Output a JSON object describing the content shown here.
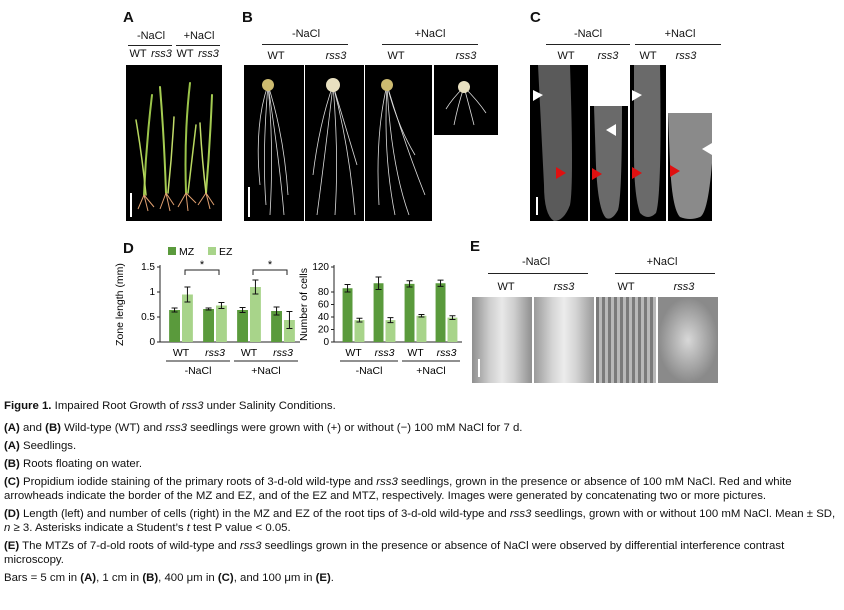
{
  "panels": {
    "A": {
      "label": "A",
      "cond": [
        "-NaCl",
        "+NaCl"
      ],
      "geno": [
        "WT",
        "rss3",
        "WT",
        "rss3"
      ]
    },
    "B": {
      "label": "B",
      "cond": [
        "-NaCl",
        "+NaCl"
      ],
      "geno": [
        "WT",
        "rss3",
        "WT",
        "rss3"
      ]
    },
    "C": {
      "label": "C",
      "cond": [
        "-NaCl",
        "+NaCl"
      ],
      "geno": [
        "WT",
        "rss3",
        "WT",
        "rss3"
      ]
    },
    "D": {
      "label": "D"
    },
    "E": {
      "label": "E",
      "cond": [
        "-NaCl",
        "+NaCl"
      ],
      "geno": [
        "WT",
        "rss3",
        "WT",
        "rss3"
      ]
    }
  },
  "chart_data": [
    {
      "type": "bar",
      "ylabel": "Zone length (mm)",
      "ylim": [
        0,
        1.5
      ],
      "yticks": [
        "1.5",
        "1",
        "0.5",
        "0"
      ],
      "legend": [
        "MZ",
        "EZ"
      ],
      "categories": [
        "WT",
        "rss3",
        "WT",
        "rss3"
      ],
      "groups": [
        "-NaCl",
        "+NaCl"
      ],
      "series": [
        {
          "name": "MZ",
          "values": [
            0.64,
            0.66,
            0.64,
            0.62
          ],
          "errors": [
            0.04,
            0.02,
            0.05,
            0.08
          ],
          "color": "#5a9a3c"
        },
        {
          "name": "EZ",
          "values": [
            0.95,
            0.73,
            1.1,
            0.44
          ],
          "errors": [
            0.15,
            0.06,
            0.14,
            0.17
          ],
          "color": "#a8d48a"
        }
      ],
      "significance": [
        "*",
        "*"
      ]
    },
    {
      "type": "bar",
      "ylabel": "Number of cells",
      "ylim": [
        0,
        120
      ],
      "yticks": [
        "120",
        "80",
        "60",
        "40",
        "20",
        "0"
      ],
      "categories": [
        "WT",
        "rss3",
        "WT",
        "rss3"
      ],
      "groups": [
        "-NaCl",
        "+NaCl"
      ],
      "series": [
        {
          "name": "MZ",
          "values": [
            86,
            94,
            93,
            94
          ],
          "errors": [
            6,
            10,
            5,
            5
          ],
          "color": "#5a9a3c"
        },
        {
          "name": "EZ",
          "values": [
            35,
            35,
            42,
            39
          ],
          "errors": [
            3,
            4,
            2,
            3
          ],
          "color": "#a8d48a"
        }
      ]
    }
  ],
  "caption": {
    "title_prefix": "Figure 1.",
    "title_a": " Impaired Root Growth of ",
    "title_gene": "rss3",
    "title_b": " under Salinity Conditions.",
    "l1_a": "(A)",
    "l1_b": " and ",
    "l1_c": "(B)",
    "l1_d": " Wild-type (WT) and ",
    "l1_e": "rss3",
    "l1_f": " seedlings were grown with (+) or without (−) 100 mM NaCl for 7 d.",
    "l2_a": "(A)",
    "l2_b": " Seedlings.",
    "l3_a": "(B)",
    "l3_b": " Roots floating on water.",
    "l4_a": "(C)",
    "l4_b": " Propidium iodide staining of the primary roots of 3-d-old wild-type and ",
    "l4_c": "rss3",
    "l4_d": " seedlings, grown in the presence or absence of 100 mM NaCl. Red and white arrowheads indicate the border of the MZ and EZ, and of the EZ and MTZ, respectively. Images were generated by concatenating two or more pictures.",
    "l5_a": "(D)",
    "l5_b": " Length (left) and number of cells (right) in the MZ and EZ of the root tips of 3-d-old wild-type and ",
    "l5_c": "rss3",
    "l5_d": " seedlings, grown with or without 100 mM NaCl. Mean ± SD, ",
    "l5_e": "n",
    "l5_f": " ≥ 3. Asterisks indicate a Student’s ",
    "l5_g": "t",
    "l5_h": " test P value < 0.05.",
    "l6_a": "(E)",
    "l6_b": " The MTZs of 7-d-old roots of wild-type and ",
    "l6_c": "rss3",
    "l6_d": " seedlings grown in the presence or absence of NaCl were observed by differential interference contrast microscopy.",
    "l7_a": "Bars = 5 cm in ",
    "l7_b": "(A)",
    "l7_c": ", 1 cm in ",
    "l7_d": "(B)",
    "l7_e": ", 400 μm in ",
    "l7_f": "(C)",
    "l7_g": ", and 100 μm in ",
    "l7_h": "(E)",
    "l7_i": "."
  }
}
